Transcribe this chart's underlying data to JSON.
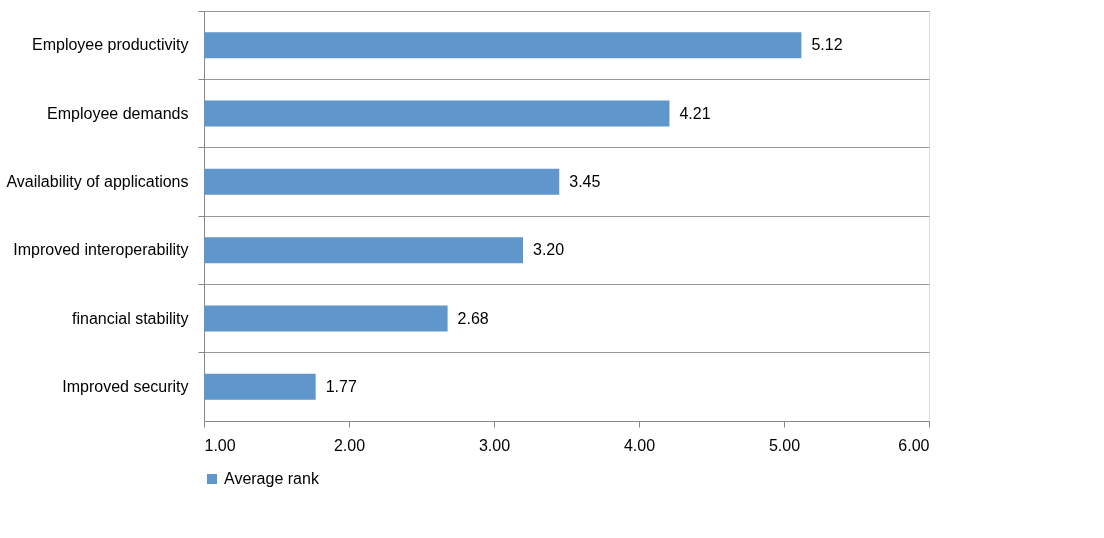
{
  "chart_data": {
    "type": "bar",
    "orientation": "horizontal",
    "categories": [
      "Employee productivity",
      "Employee demands",
      "Availability of applications",
      "Improved interoperability",
      "financial stability",
      "Improved security"
    ],
    "series": [
      {
        "name": "Average rank",
        "color": "#5f97cc",
        "values": [
          5.12,
          4.21,
          3.45,
          3.2,
          2.68,
          1.77
        ]
      }
    ],
    "xlim": [
      1,
      6
    ],
    "xticks": [
      {
        "value": 1,
        "label": "1.00"
      },
      {
        "value": 2,
        "label": "2.00"
      },
      {
        "value": 3,
        "label": "3.00"
      },
      {
        "value": 4,
        "label": "4.00"
      },
      {
        "value": 5,
        "label": "5.00"
      },
      {
        "value": 6,
        "label": "6.00"
      }
    ],
    "value_labels": [
      "5.12",
      "4.21",
      "3.45",
      "3.20",
      "2.68",
      "1.77"
    ],
    "grid": "y",
    "legend": "bottom"
  }
}
